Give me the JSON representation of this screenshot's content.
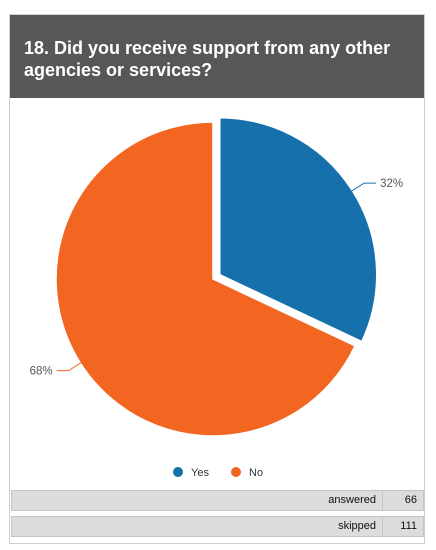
{
  "question": {
    "title": "18. Did you receive support from any other agencies or services?"
  },
  "chart_data": {
    "type": "pie",
    "slices": [
      {
        "label": "Yes",
        "value": 32,
        "display": "32%",
        "color": "#1670ac"
      },
      {
        "label": "No",
        "value": 68,
        "display": "68%",
        "color": "#f26622"
      }
    ],
    "legend_position": "bottom",
    "exploded_slice": "Yes"
  },
  "stats": {
    "answered_label": "answered",
    "answered_value": "66",
    "skipped_label": "skipped",
    "skipped_value": "111"
  }
}
